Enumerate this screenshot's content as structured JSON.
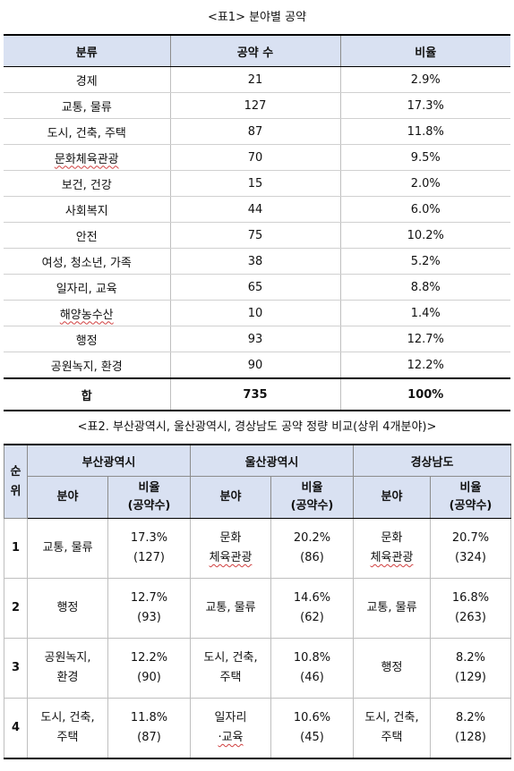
{
  "table1": {
    "caption": "<표1> 분야별 공약",
    "headers": [
      "분류",
      "공약 수",
      "비율"
    ],
    "rows": [
      [
        "경제",
        "21",
        "2.9%"
      ],
      [
        "교통, 물류",
        "127",
        "17.3%"
      ],
      [
        "도시, 건축, 주택",
        "87",
        "11.8%"
      ],
      [
        "문화체육관광",
        "70",
        "9.5%"
      ],
      [
        "보건, 건강",
        "15",
        "2.0%"
      ],
      [
        "사회복지",
        "44",
        "6.0%"
      ],
      [
        "안전",
        "75",
        "10.2%"
      ],
      [
        "여성, 청소년, 가족",
        "38",
        "5.2%"
      ],
      [
        "일자리, 교육",
        "65",
        "8.8%"
      ],
      [
        "해양농수산",
        "10",
        "1.4%"
      ],
      [
        "행정",
        "93",
        "12.7%"
      ],
      [
        "공원녹지, 환경",
        "90",
        "12.2%"
      ]
    ],
    "total": [
      "합",
      "735",
      "100%"
    ]
  },
  "table2": {
    "caption": "<표2. 부산광역시, 울산광역시, 경상남도 공약 정량 비교(상위 4개분야)>",
    "rank_header": [
      "순",
      "위"
    ],
    "regions": [
      "부산광역시",
      "울산광역시",
      "경상남도"
    ],
    "sub_field": "분야",
    "sub_ratio": [
      "비율",
      "(공약수)"
    ],
    "rows": [
      {
        "rank": "1",
        "c": [
          [
            "교통, 물류"
          ],
          [
            "17.3%",
            "(127)"
          ],
          [
            "문화",
            "체육관광"
          ],
          [
            "20.2%",
            "(86)"
          ],
          [
            "문화",
            "체육관광"
          ],
          [
            "20.7%",
            "(324)"
          ]
        ]
      },
      {
        "rank": "2",
        "c": [
          [
            "행정"
          ],
          [
            "12.7%",
            "(93)"
          ],
          [
            "교통, 물류"
          ],
          [
            "14.6%",
            "(62)"
          ],
          [
            "교통, 물류"
          ],
          [
            "16.8%",
            "(263)"
          ]
        ]
      },
      {
        "rank": "3",
        "c": [
          [
            "공원녹지,",
            "환경"
          ],
          [
            "12.2%",
            "(90)"
          ],
          [
            "도시, 건축,",
            "주택"
          ],
          [
            "10.8%",
            "(46)"
          ],
          [
            "행정"
          ],
          [
            "8.2%",
            "(129)"
          ]
        ]
      },
      {
        "rank": "4",
        "c": [
          [
            "도시, 건축,",
            "주택"
          ],
          [
            "11.8%",
            "(87)"
          ],
          [
            "일자리",
            "·교육"
          ],
          [
            "10.6%",
            "(45)"
          ],
          [
            "도시, 건축,",
            "주택"
          ],
          [
            "8.2%",
            "(128)"
          ]
        ]
      }
    ]
  }
}
